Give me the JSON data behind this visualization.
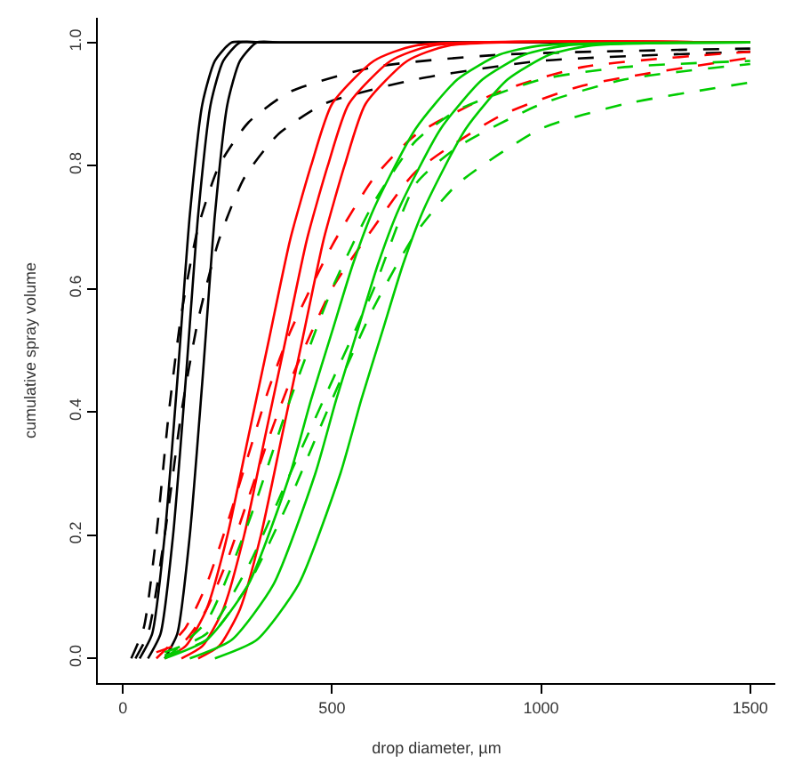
{
  "chart_data": {
    "type": "line",
    "xlabel": "drop diameter, µm",
    "ylabel": "cumulative spray volume",
    "xlim": [
      -60,
      1560
    ],
    "xticks": [
      0,
      500,
      1000,
      1500
    ],
    "ylim": [
      -0.04,
      1.04
    ],
    "yticks": [
      {
        "value": 0,
        "label": "0.0"
      },
      {
        "value": 0.2,
        "label": "0.2"
      },
      {
        "value": 0.4,
        "label": "0.4"
      },
      {
        "value": 0.6,
        "label": "0.6"
      },
      {
        "value": 0.8,
        "label": "0.8"
      },
      {
        "value": 1,
        "label": "1.0"
      }
    ],
    "marker": "none",
    "series": [
      {
        "color": "#000000",
        "line_style": "solid",
        "x": [
          40,
          70,
          100,
          130,
          160,
          190,
          220,
          260,
          320,
          1500
        ],
        "values": [
          0,
          0.04,
          0.2,
          0.45,
          0.72,
          0.9,
          0.97,
          1,
          1,
          1
        ]
      },
      {
        "color": "#000000",
        "line_style": "solid",
        "x": [
          60,
          90,
          120,
          150,
          180,
          210,
          240,
          280,
          340,
          1500
        ],
        "values": [
          0,
          0.04,
          0.2,
          0.45,
          0.72,
          0.9,
          0.97,
          1,
          1,
          1
        ]
      },
      {
        "color": "#000000",
        "line_style": "solid",
        "x": [
          100,
          130,
          160,
          190,
          220,
          250,
          280,
          320,
          380,
          1500
        ],
        "values": [
          0,
          0.04,
          0.2,
          0.45,
          0.72,
          0.9,
          0.97,
          1,
          1,
          1
        ]
      },
      {
        "color": "#000000",
        "line_style": "dashed",
        "x": [
          20,
          50,
          80,
          110,
          140,
          180,
          230,
          300,
          400,
          600,
          900,
          1500
        ],
        "values": [
          0,
          0.05,
          0.2,
          0.4,
          0.56,
          0.7,
          0.8,
          0.87,
          0.92,
          0.96,
          0.98,
          0.99
        ]
      },
      {
        "color": "#000000",
        "line_style": "dashed",
        "x": [
          30,
          60,
          100,
          140,
          180,
          230,
          290,
          370,
          480,
          700,
          1000,
          1500
        ],
        "values": [
          0,
          0.04,
          0.2,
          0.4,
          0.55,
          0.68,
          0.78,
          0.85,
          0.9,
          0.94,
          0.97,
          0.985
        ]
      },
      {
        "color": "#ff0000",
        "line_style": "solid",
        "x": [
          100,
          150,
          200,
          250,
          300,
          350,
          400,
          450,
          500,
          600,
          700,
          1500
        ],
        "values": [
          0,
          0.02,
          0.08,
          0.2,
          0.36,
          0.52,
          0.68,
          0.8,
          0.9,
          0.97,
          0.995,
          1
        ]
      },
      {
        "color": "#ff0000",
        "line_style": "solid",
        "x": [
          140,
          190,
          240,
          290,
          340,
          390,
          440,
          490,
          540,
          640,
          740,
          1500
        ],
        "values": [
          0,
          0.02,
          0.08,
          0.2,
          0.36,
          0.52,
          0.68,
          0.8,
          0.9,
          0.97,
          0.995,
          1
        ]
      },
      {
        "color": "#ff0000",
        "line_style": "solid",
        "x": [
          180,
          230,
          280,
          330,
          380,
          430,
          480,
          530,
          580,
          680,
          780,
          1500
        ],
        "values": [
          0,
          0.02,
          0.08,
          0.2,
          0.36,
          0.52,
          0.68,
          0.8,
          0.9,
          0.97,
          0.995,
          1
        ]
      },
      {
        "color": "#ff0000",
        "line_style": "dashed",
        "x": [
          80,
          150,
          200,
          250,
          300,
          350,
          400,
          500,
          600,
          700,
          900,
          1100,
          1500
        ],
        "values": [
          0,
          0.05,
          0.12,
          0.22,
          0.33,
          0.44,
          0.53,
          0.67,
          0.78,
          0.85,
          0.92,
          0.96,
          0.985
        ]
      },
      {
        "color": "#ff0000",
        "line_style": "dashed",
        "x": [
          80,
          150,
          200,
          250,
          300,
          350,
          400,
          500,
          600,
          700,
          900,
          1100,
          1500
        ],
        "values": [
          0.01,
          0.03,
          0.08,
          0.16,
          0.26,
          0.36,
          0.45,
          0.6,
          0.7,
          0.79,
          0.88,
          0.93,
          0.975
        ]
      },
      {
        "color": "#00cc00",
        "line_style": "solid",
        "x": [
          100,
          200,
          300,
          400,
          450,
          500,
          550,
          600,
          700,
          800,
          900,
          1000,
          1500
        ],
        "values": [
          0,
          0.03,
          0.12,
          0.3,
          0.42,
          0.53,
          0.64,
          0.73,
          0.86,
          0.94,
          0.98,
          0.995,
          1
        ]
      },
      {
        "color": "#00cc00",
        "line_style": "solid",
        "x": [
          160,
          260,
          360,
          460,
          510,
          560,
          610,
          660,
          760,
          860,
          960,
          1060,
          1500
        ],
        "values": [
          0,
          0.03,
          0.12,
          0.3,
          0.42,
          0.53,
          0.64,
          0.73,
          0.86,
          0.94,
          0.98,
          0.995,
          1
        ]
      },
      {
        "color": "#00cc00",
        "line_style": "solid",
        "x": [
          220,
          320,
          420,
          520,
          570,
          620,
          670,
          720,
          820,
          920,
          1020,
          1120,
          1500
        ],
        "values": [
          0,
          0.03,
          0.12,
          0.3,
          0.42,
          0.53,
          0.64,
          0.73,
          0.86,
          0.94,
          0.98,
          0.995,
          1
        ]
      },
      {
        "color": "#00cc00",
        "line_style": "dashed",
        "x": [
          100,
          200,
          300,
          400,
          500,
          600,
          700,
          800,
          1000,
          1200,
          1500
        ],
        "values": [
          0,
          0.06,
          0.22,
          0.42,
          0.6,
          0.74,
          0.84,
          0.89,
          0.94,
          0.96,
          0.97
        ]
      },
      {
        "color": "#00cc00",
        "line_style": "dashed",
        "x": [
          100,
          200,
          300,
          400,
          500,
          600,
          700,
          800,
          1000,
          1200,
          1500
        ],
        "values": [
          0.01,
          0.04,
          0.15,
          0.3,
          0.45,
          0.6,
          0.77,
          0.83,
          0.9,
          0.94,
          0.965
        ]
      },
      {
        "color": "#00cc00",
        "line_style": "dashed",
        "x": [
          100,
          200,
          300,
          400,
          500,
          600,
          700,
          800,
          1000,
          1200,
          1500
        ],
        "values": [
          0.005,
          0.03,
          0.12,
          0.26,
          0.42,
          0.57,
          0.69,
          0.77,
          0.86,
          0.9,
          0.935
        ]
      }
    ]
  }
}
